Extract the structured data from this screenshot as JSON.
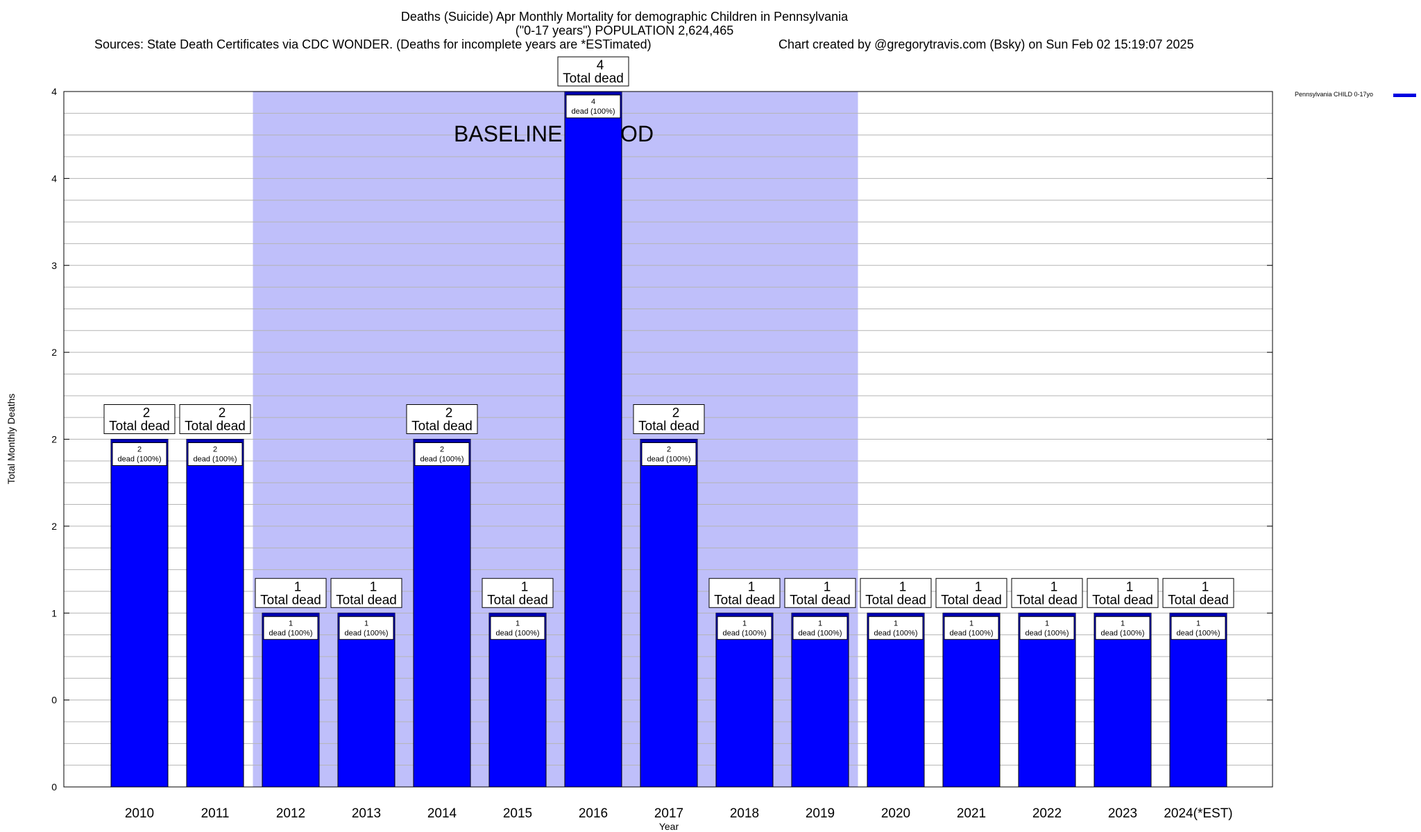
{
  "titles": {
    "line1": "Deaths (Suicide) Apr Monthly Mortality for demographic Children in Pennsylvania",
    "line2": "(\"0-17 years\") POPULATION 2,624,465",
    "sources": "Sources: State Death Certificates via CDC WONDER. (Deaths for incomplete years are *ESTimated)",
    "credit": "Chart created by @gregorytravis.com (Bsky) on Sun Feb 02 15:19:07 2025"
  },
  "chart_data": {
    "type": "bar",
    "xlabel": "Year",
    "ylabel": "Total Monthly Deaths",
    "ylim": [
      0,
      4
    ],
    "y_tick_labels": [
      "0",
      "0",
      "1",
      "2",
      "2",
      "2",
      "3",
      "4",
      "4"
    ],
    "grid": true,
    "legend_position": "top-right",
    "categories": [
      "2010",
      "2011",
      "2012",
      "2013",
      "2014",
      "2015",
      "2016",
      "2017",
      "2018",
      "2019",
      "2020",
      "2021",
      "2022",
      "2023",
      "2024(*EST)"
    ],
    "series": [
      {
        "name": "Pennsylvania CHILD 0-17yo",
        "color": "#0000ff",
        "values": [
          2,
          2,
          1,
          1,
          2,
          1,
          4,
          2,
          1,
          1,
          1,
          1,
          1,
          1,
          1
        ]
      }
    ],
    "total_label_suffix": "Total dead",
    "inner_label_suffix": "dead (100%)",
    "baseline": {
      "label": "BASELINE PERIOD",
      "from": "2012",
      "to": "2019",
      "color": "#bfbffa"
    }
  }
}
